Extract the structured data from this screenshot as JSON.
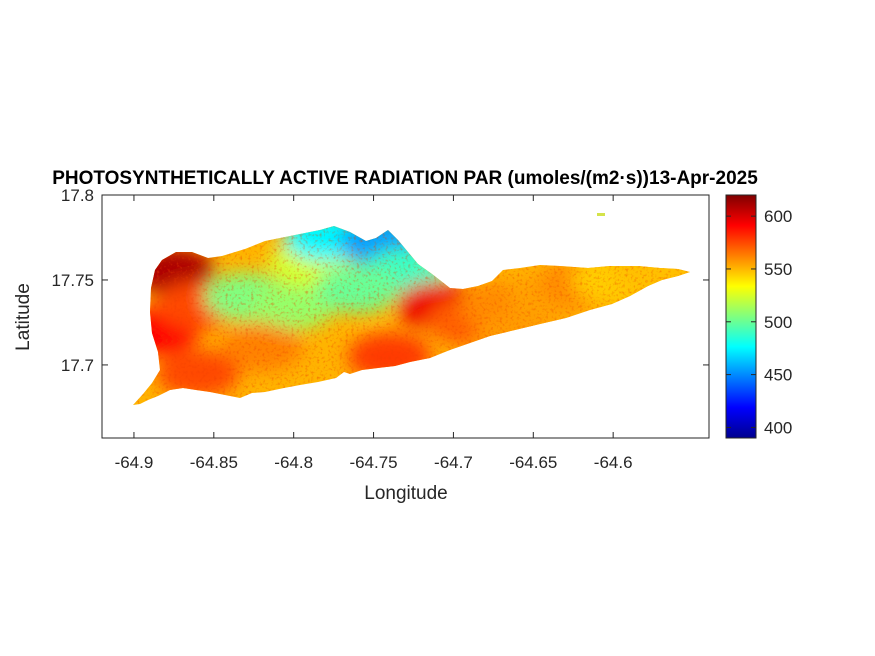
{
  "chart_data": {
    "type": "heatmap",
    "title": "PHOTOSYNTHETICALLY ACTIVE RADIATION PAR (umoles/(m2·s))13-Apr-2025",
    "xlabel": "Longitude",
    "ylabel": "Latitude",
    "xlim": [
      -64.92,
      -64.54
    ],
    "ylim": [
      17.657,
      17.8
    ],
    "xticks": [
      -64.9,
      -64.85,
      -64.8,
      -64.75,
      -64.7,
      -64.65,
      -64.6
    ],
    "xtick_labels": [
      "-64.9",
      "-64.85",
      "-64.8",
      "-64.75",
      "-64.7",
      "-64.65",
      "-64.6"
    ],
    "yticks": [
      17.7,
      17.75,
      17.8
    ],
    "ytick_labels": [
      "17.7",
      "17.75",
      "17.8"
    ],
    "colormap": "jet",
    "clim": [
      390,
      620
    ],
    "colorbar_ticks": [
      400,
      450,
      500,
      550,
      600
    ],
    "colorbar_tick_labels": [
      "400",
      "450",
      "500",
      "550",
      "600"
    ],
    "grid": false,
    "colors": {
      "axes": "#262626",
      "background": "#ffffff"
    },
    "regions": [
      {
        "lon": -64.875,
        "lat": 17.755,
        "value": 610
      },
      {
        "lon": -64.885,
        "lat": 17.72,
        "value": 590
      },
      {
        "lon": -64.86,
        "lat": 17.735,
        "value": 575
      },
      {
        "lon": -64.83,
        "lat": 17.74,
        "value": 505
      },
      {
        "lon": -64.8,
        "lat": 17.735,
        "value": 510
      },
      {
        "lon": -64.79,
        "lat": 17.76,
        "value": 525
      },
      {
        "lon": -64.78,
        "lat": 17.775,
        "value": 475
      },
      {
        "lon": -64.745,
        "lat": 17.772,
        "value": 455
      },
      {
        "lon": -64.73,
        "lat": 17.755,
        "value": 490
      },
      {
        "lon": -64.76,
        "lat": 17.745,
        "value": 500
      },
      {
        "lon": -64.74,
        "lat": 17.705,
        "value": 578
      },
      {
        "lon": -64.82,
        "lat": 17.71,
        "value": 562
      },
      {
        "lon": -64.86,
        "lat": 17.695,
        "value": 575
      },
      {
        "lon": -64.71,
        "lat": 17.735,
        "value": 595
      },
      {
        "lon": -64.69,
        "lat": 17.725,
        "value": 570
      },
      {
        "lon": -64.67,
        "lat": 17.735,
        "value": 560
      },
      {
        "lon": -64.64,
        "lat": 17.74,
        "value": 555
      },
      {
        "lon": -64.62,
        "lat": 17.748,
        "value": 560
      },
      {
        "lon": -64.6,
        "lat": 17.75,
        "value": 545
      },
      {
        "lon": -64.575,
        "lat": 17.755,
        "value": 548
      },
      {
        "lon": -64.66,
        "lat": 17.715,
        "value": 556
      }
    ]
  }
}
